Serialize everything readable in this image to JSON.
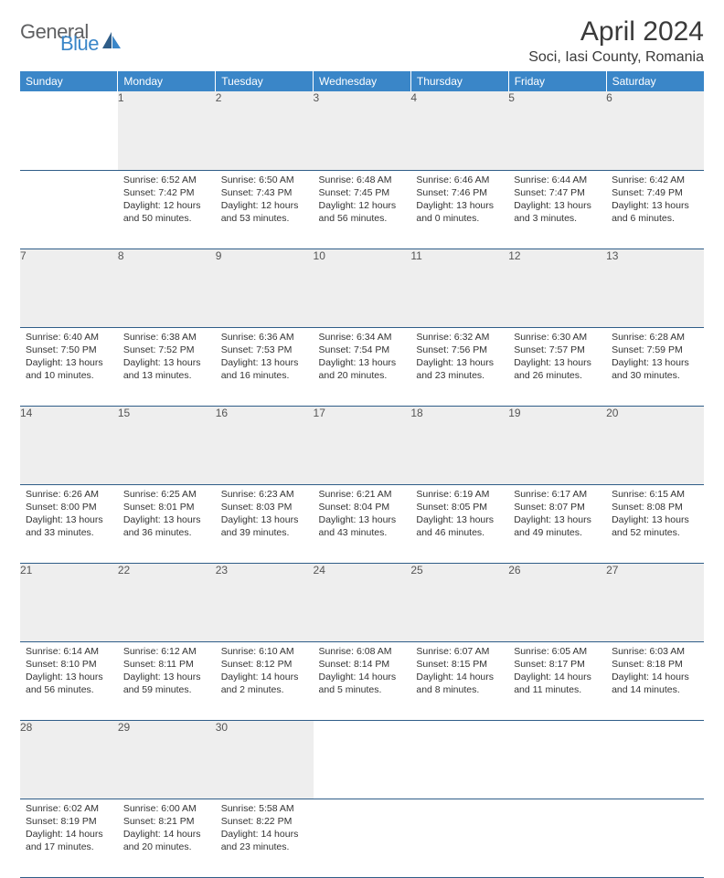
{
  "logo": {
    "text_general": "General",
    "text_blue": "Blue"
  },
  "title": "April 2024",
  "location": "Soci, Iasi County, Romania",
  "colors": {
    "header_bg": "#3a86c8",
    "header_text": "#ffffff",
    "daynum_bg": "#eeeeee",
    "row_divider": "#2f5d88",
    "body_text": "#333333",
    "logo_gray": "#5f6062",
    "logo_blue": "#3a86c8"
  },
  "weekdays": [
    "Sunday",
    "Monday",
    "Tuesday",
    "Wednesday",
    "Thursday",
    "Friday",
    "Saturday"
  ],
  "weeks": [
    [
      null,
      {
        "n": "1",
        "sunrise": "Sunrise: 6:52 AM",
        "sunset": "Sunset: 7:42 PM",
        "day1": "Daylight: 12 hours",
        "day2": "and 50 minutes."
      },
      {
        "n": "2",
        "sunrise": "Sunrise: 6:50 AM",
        "sunset": "Sunset: 7:43 PM",
        "day1": "Daylight: 12 hours",
        "day2": "and 53 minutes."
      },
      {
        "n": "3",
        "sunrise": "Sunrise: 6:48 AM",
        "sunset": "Sunset: 7:45 PM",
        "day1": "Daylight: 12 hours",
        "day2": "and 56 minutes."
      },
      {
        "n": "4",
        "sunrise": "Sunrise: 6:46 AM",
        "sunset": "Sunset: 7:46 PM",
        "day1": "Daylight: 13 hours",
        "day2": "and 0 minutes."
      },
      {
        "n": "5",
        "sunrise": "Sunrise: 6:44 AM",
        "sunset": "Sunset: 7:47 PM",
        "day1": "Daylight: 13 hours",
        "day2": "and 3 minutes."
      },
      {
        "n": "6",
        "sunrise": "Sunrise: 6:42 AM",
        "sunset": "Sunset: 7:49 PM",
        "day1": "Daylight: 13 hours",
        "day2": "and 6 minutes."
      }
    ],
    [
      {
        "n": "7",
        "sunrise": "Sunrise: 6:40 AM",
        "sunset": "Sunset: 7:50 PM",
        "day1": "Daylight: 13 hours",
        "day2": "and 10 minutes."
      },
      {
        "n": "8",
        "sunrise": "Sunrise: 6:38 AM",
        "sunset": "Sunset: 7:52 PM",
        "day1": "Daylight: 13 hours",
        "day2": "and 13 minutes."
      },
      {
        "n": "9",
        "sunrise": "Sunrise: 6:36 AM",
        "sunset": "Sunset: 7:53 PM",
        "day1": "Daylight: 13 hours",
        "day2": "and 16 minutes."
      },
      {
        "n": "10",
        "sunrise": "Sunrise: 6:34 AM",
        "sunset": "Sunset: 7:54 PM",
        "day1": "Daylight: 13 hours",
        "day2": "and 20 minutes."
      },
      {
        "n": "11",
        "sunrise": "Sunrise: 6:32 AM",
        "sunset": "Sunset: 7:56 PM",
        "day1": "Daylight: 13 hours",
        "day2": "and 23 minutes."
      },
      {
        "n": "12",
        "sunrise": "Sunrise: 6:30 AM",
        "sunset": "Sunset: 7:57 PM",
        "day1": "Daylight: 13 hours",
        "day2": "and 26 minutes."
      },
      {
        "n": "13",
        "sunrise": "Sunrise: 6:28 AM",
        "sunset": "Sunset: 7:59 PM",
        "day1": "Daylight: 13 hours",
        "day2": "and 30 minutes."
      }
    ],
    [
      {
        "n": "14",
        "sunrise": "Sunrise: 6:26 AM",
        "sunset": "Sunset: 8:00 PM",
        "day1": "Daylight: 13 hours",
        "day2": "and 33 minutes."
      },
      {
        "n": "15",
        "sunrise": "Sunrise: 6:25 AM",
        "sunset": "Sunset: 8:01 PM",
        "day1": "Daylight: 13 hours",
        "day2": "and 36 minutes."
      },
      {
        "n": "16",
        "sunrise": "Sunrise: 6:23 AM",
        "sunset": "Sunset: 8:03 PM",
        "day1": "Daylight: 13 hours",
        "day2": "and 39 minutes."
      },
      {
        "n": "17",
        "sunrise": "Sunrise: 6:21 AM",
        "sunset": "Sunset: 8:04 PM",
        "day1": "Daylight: 13 hours",
        "day2": "and 43 minutes."
      },
      {
        "n": "18",
        "sunrise": "Sunrise: 6:19 AM",
        "sunset": "Sunset: 8:05 PM",
        "day1": "Daylight: 13 hours",
        "day2": "and 46 minutes."
      },
      {
        "n": "19",
        "sunrise": "Sunrise: 6:17 AM",
        "sunset": "Sunset: 8:07 PM",
        "day1": "Daylight: 13 hours",
        "day2": "and 49 minutes."
      },
      {
        "n": "20",
        "sunrise": "Sunrise: 6:15 AM",
        "sunset": "Sunset: 8:08 PM",
        "day1": "Daylight: 13 hours",
        "day2": "and 52 minutes."
      }
    ],
    [
      {
        "n": "21",
        "sunrise": "Sunrise: 6:14 AM",
        "sunset": "Sunset: 8:10 PM",
        "day1": "Daylight: 13 hours",
        "day2": "and 56 minutes."
      },
      {
        "n": "22",
        "sunrise": "Sunrise: 6:12 AM",
        "sunset": "Sunset: 8:11 PM",
        "day1": "Daylight: 13 hours",
        "day2": "and 59 minutes."
      },
      {
        "n": "23",
        "sunrise": "Sunrise: 6:10 AM",
        "sunset": "Sunset: 8:12 PM",
        "day1": "Daylight: 14 hours",
        "day2": "and 2 minutes."
      },
      {
        "n": "24",
        "sunrise": "Sunrise: 6:08 AM",
        "sunset": "Sunset: 8:14 PM",
        "day1": "Daylight: 14 hours",
        "day2": "and 5 minutes."
      },
      {
        "n": "25",
        "sunrise": "Sunrise: 6:07 AM",
        "sunset": "Sunset: 8:15 PM",
        "day1": "Daylight: 14 hours",
        "day2": "and 8 minutes."
      },
      {
        "n": "26",
        "sunrise": "Sunrise: 6:05 AM",
        "sunset": "Sunset: 8:17 PM",
        "day1": "Daylight: 14 hours",
        "day2": "and 11 minutes."
      },
      {
        "n": "27",
        "sunrise": "Sunrise: 6:03 AM",
        "sunset": "Sunset: 8:18 PM",
        "day1": "Daylight: 14 hours",
        "day2": "and 14 minutes."
      }
    ],
    [
      {
        "n": "28",
        "sunrise": "Sunrise: 6:02 AM",
        "sunset": "Sunset: 8:19 PM",
        "day1": "Daylight: 14 hours",
        "day2": "and 17 minutes."
      },
      {
        "n": "29",
        "sunrise": "Sunrise: 6:00 AM",
        "sunset": "Sunset: 8:21 PM",
        "day1": "Daylight: 14 hours",
        "day2": "and 20 minutes."
      },
      {
        "n": "30",
        "sunrise": "Sunrise: 5:58 AM",
        "sunset": "Sunset: 8:22 PM",
        "day1": "Daylight: 14 hours",
        "day2": "and 23 minutes."
      },
      null,
      null,
      null,
      null
    ]
  ]
}
